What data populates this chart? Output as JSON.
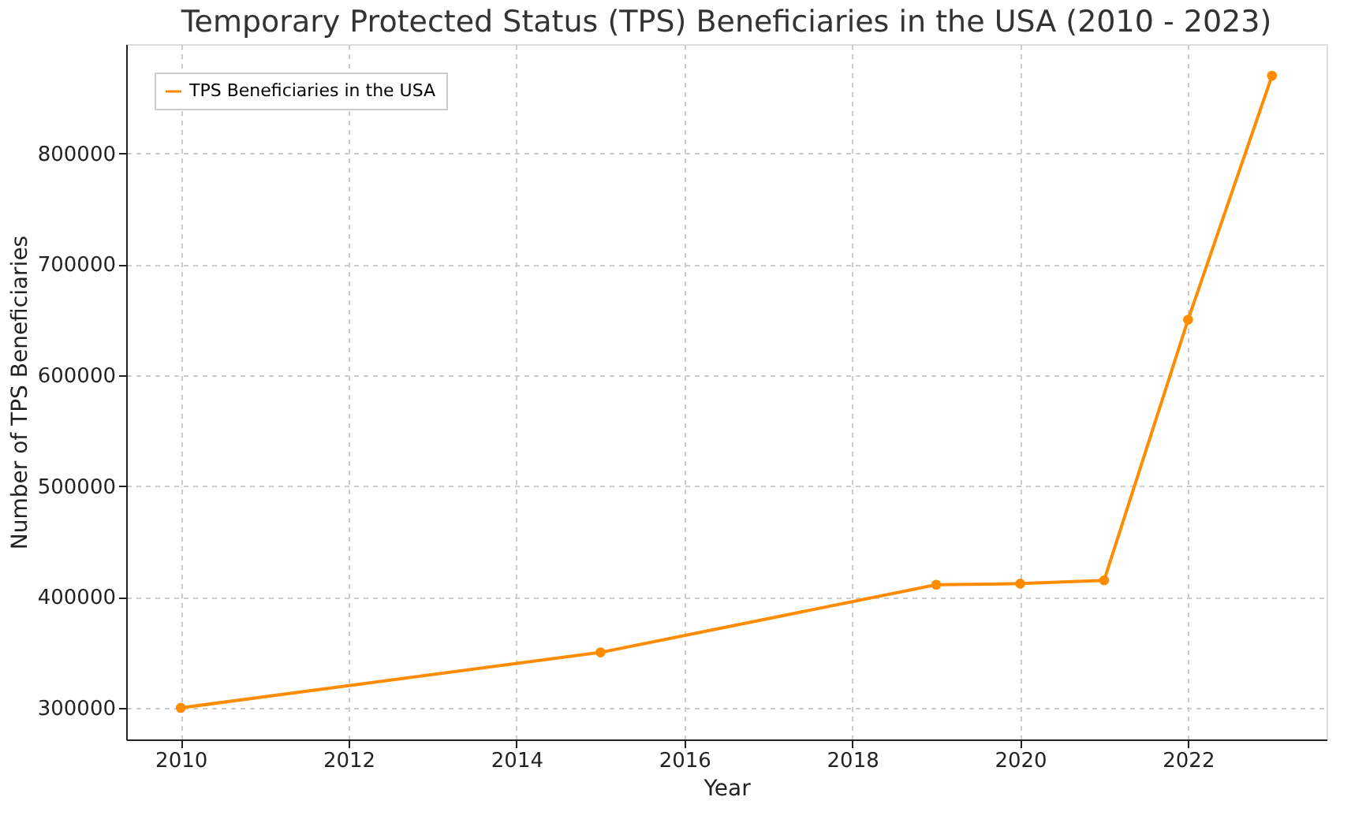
{
  "chart_data": {
    "type": "line",
    "title": "Temporary Protected Status (TPS) Beneficiaries in the USA (2010 - 2023)",
    "xlabel": "Year",
    "ylabel": "Number of TPS Beneficiaries",
    "x": [
      2010,
      2015,
      2019,
      2020,
      2021,
      2022,
      2023
    ],
    "series": [
      {
        "name": "TPS Beneficiaries in the USA",
        "color": "#ff8c00",
        "values": [
          300000,
          350000,
          411000,
          412000,
          415000,
          650000,
          870000
        ]
      }
    ],
    "xlim": [
      2009.35,
      2023.65
    ],
    "xticks": [
      2010,
      2012,
      2014,
      2016,
      2018,
      2020,
      2022
    ],
    "ylim": [
      271500,
      898500
    ],
    "yticks": [
      300000,
      400000,
      500000,
      600000,
      700000,
      800000
    ],
    "grid": true,
    "legend": "top left",
    "marker": "circle",
    "line_style": "solid"
  }
}
